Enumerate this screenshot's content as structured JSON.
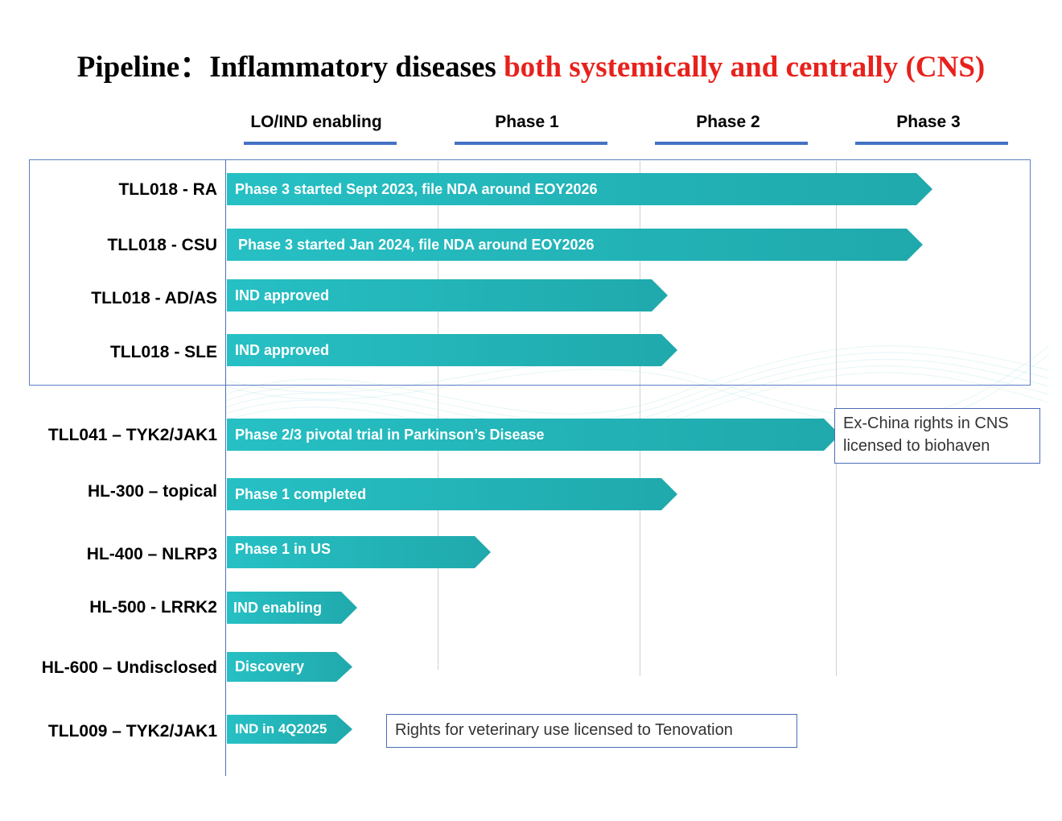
{
  "title": {
    "main": "Pipeline：Inflammatory diseases ",
    "highlight": "both systemically and centrally (CNS)"
  },
  "phases": [
    "LO/IND enabling",
    "Phase 1",
    "Phase 2",
    "Phase 3"
  ],
  "rows": [
    {
      "label": "TLL018 - RA",
      "bar_text": "Phase 3 started Sept 2023, file NDA around EOY2026"
    },
    {
      "label": "TLL018 - CSU",
      "bar_text": "Phase 3 started Jan 2024, file NDA around EOY2026"
    },
    {
      "label": "TLL018 - AD/AS",
      "bar_text": "IND approved"
    },
    {
      "label": "TLL018 - SLE",
      "bar_text": "IND approved"
    },
    {
      "label": "TLL041 – TYK2/JAK1",
      "bar_text": "Phase 2/3 pivotal trial in Parkinson’s Disease"
    },
    {
      "label": "HL-300 – topical",
      "bar_text": "Phase 1 completed"
    },
    {
      "label": "HL-400 – NLRP3",
      "bar_text": "Phase 1 in US"
    },
    {
      "label": "HL-500 - LRRK2",
      "bar_text": "IND enabling"
    },
    {
      "label": "HL-600 – Undisclosed",
      "bar_text": "Discovery"
    },
    {
      "label": "TLL009 – TYK2/JAK1",
      "bar_text": "IND in 4Q2025"
    }
  ],
  "notes": {
    "exchina": "Ex-China rights in CNS licensed to biohaven",
    "veterinary": "Rights for veterinary use licensed to Tenovation"
  },
  "colors": {
    "bar_start": "#26c0c4",
    "bar_end": "#20a9ac",
    "title_highlight": "#e8211c",
    "phase_underline": "#4472c4"
  }
}
